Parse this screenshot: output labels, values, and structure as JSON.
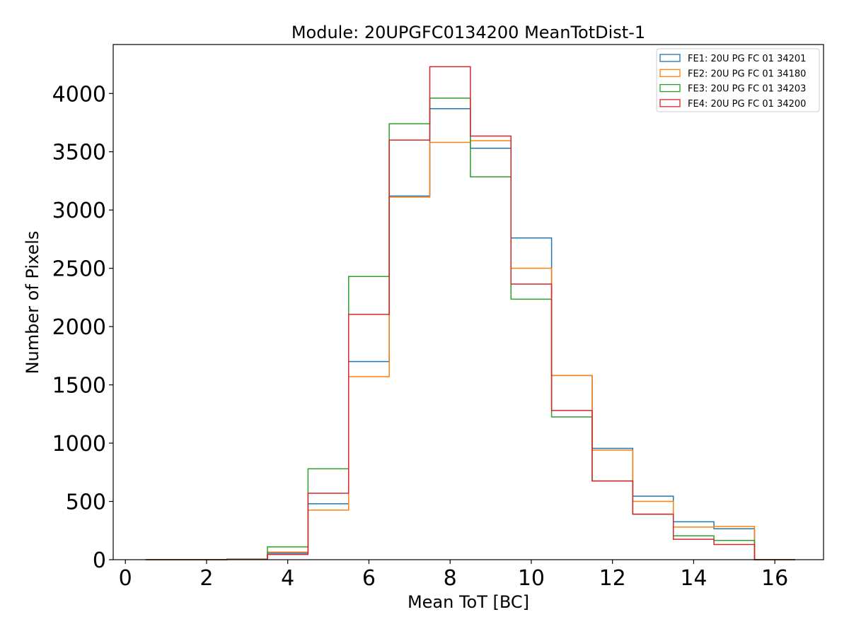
{
  "chart_data": {
    "type": "histogram-step",
    "title": "Module: 20UPGFC0134200 MeanTotDist-1",
    "xlabel": "Mean ToT [BC]",
    "ylabel": "Number of Pixels",
    "xlim": [
      -0.3,
      17.2
    ],
    "ylim": [
      0,
      4420
    ],
    "xticks": [
      0,
      2,
      4,
      6,
      8,
      10,
      12,
      14,
      16
    ],
    "yticks": [
      0,
      500,
      1000,
      1500,
      2000,
      2500,
      3000,
      3500,
      4000
    ],
    "bin_edges": [
      0.5,
      1.5,
      2.5,
      3.5,
      4.5,
      5.5,
      6.5,
      7.5,
      8.5,
      9.5,
      10.5,
      11.5,
      12.5,
      13.5,
      14.5,
      15.5,
      16.5
    ],
    "legend_position": "top-right",
    "series": [
      {
        "name": "FE1: 20U PG FC 01 34201",
        "color": "#1f77b4",
        "values": [
          0,
          0,
          3,
          55,
          480,
          1700,
          3120,
          3870,
          3530,
          2760,
          1580,
          955,
          545,
          325,
          265,
          0
        ]
      },
      {
        "name": "FE2: 20U PG FC 01 34180",
        "color": "#ff7f0e",
        "values": [
          0,
          0,
          2,
          65,
          425,
          1570,
          3110,
          3580,
          3595,
          2500,
          1580,
          940,
          500,
          280,
          285,
          0
        ]
      },
      {
        "name": "FE3: 20U PG FC 01 34203",
        "color": "#2ca02c",
        "values": [
          0,
          0,
          5,
          110,
          780,
          2430,
          3740,
          3960,
          3285,
          2235,
          1225,
          675,
          390,
          205,
          165,
          0
        ]
      },
      {
        "name": "FE4: 20U PG FC 01 34200",
        "color": "#d62728",
        "values": [
          0,
          0,
          2,
          45,
          570,
          2105,
          3600,
          4230,
          3635,
          2365,
          1280,
          675,
          390,
          175,
          130,
          0
        ]
      }
    ]
  }
}
